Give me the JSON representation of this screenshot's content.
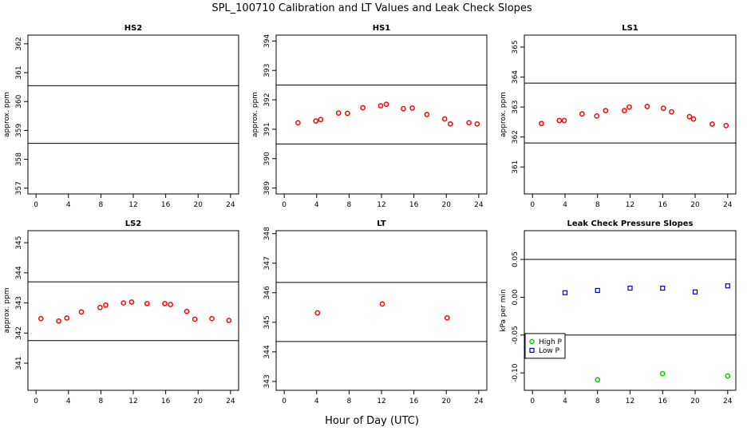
{
  "figure": {
    "title": "SPL_100710  Calibration and LT Values and Leak Check Slopes",
    "xlabel": "Hour of Day (UTC)"
  },
  "chart_data": [
    {
      "id": "hs2",
      "type": "scatter",
      "title": "HS2",
      "ylabel": "approx. ppm",
      "xlim": [
        -1,
        25
      ],
      "ylim": [
        356.8,
        362.3
      ],
      "xticks": [
        0,
        4,
        8,
        12,
        16,
        20,
        24
      ],
      "xtick_labels": [
        "0",
        "4",
        "8",
        "12",
        "16",
        "20",
        "24"
      ],
      "yticks": [
        357,
        358,
        359,
        360,
        361,
        362
      ],
      "ytick_labels": [
        "357",
        "358",
        "359",
        "360",
        "361",
        "362"
      ],
      "hlines": [
        360.55,
        358.55
      ],
      "series": [
        {
          "color": "#ff0000",
          "x": [],
          "y": []
        }
      ]
    },
    {
      "id": "hs1",
      "type": "scatter",
      "title": "HS1",
      "ylabel": "approx. ppm",
      "xlim": [
        -1,
        25
      ],
      "ylim": [
        388.8,
        394.2
      ],
      "xticks": [
        0,
        4,
        8,
        12,
        16,
        20,
        24
      ],
      "xtick_labels": [
        "0",
        "4",
        "8",
        "12",
        "16",
        "20",
        "24"
      ],
      "yticks": [
        389,
        390,
        391,
        392,
        393,
        394
      ],
      "ytick_labels": [
        "389",
        "390",
        "391",
        "392",
        "393",
        "394"
      ],
      "hlines": [
        392.5,
        390.5
      ],
      "series": [
        {
          "color": "#ff0000",
          "x": [
            1.7,
            3.9,
            4.5,
            6.7,
            7.8,
            9.7,
            11.9,
            12.6,
            14.7,
            15.8,
            17.6,
            19.8,
            20.5,
            22.8,
            23.8
          ],
          "y": [
            391.22,
            391.28,
            391.33,
            391.55,
            391.54,
            391.73,
            391.8,
            391.85,
            391.7,
            391.72,
            391.5,
            391.35,
            391.18,
            391.22,
            391.18
          ]
        }
      ]
    },
    {
      "id": "ls1",
      "type": "scatter",
      "title": "LS1",
      "ylabel": "approx. ppm",
      "xlim": [
        -1,
        25
      ],
      "ylim": [
        360.1,
        365.4
      ],
      "xticks": [
        0,
        4,
        8,
        12,
        16,
        20,
        24
      ],
      "xtick_labels": [
        "0",
        "4",
        "8",
        "12",
        "16",
        "20",
        "24"
      ],
      "yticks": [
        361,
        362,
        363,
        364,
        365
      ],
      "ytick_labels": [
        "361",
        "362",
        "363",
        "364",
        "365"
      ],
      "hlines": [
        363.8,
        361.8
      ],
      "series": [
        {
          "color": "#ff0000",
          "x": [
            1.1,
            3.3,
            3.9,
            6.1,
            7.9,
            9.0,
            11.3,
            11.9,
            14.1,
            16.1,
            17.1,
            19.3,
            19.8,
            22.1,
            23.8
          ],
          "y": [
            362.45,
            362.55,
            362.55,
            362.77,
            362.7,
            362.88,
            362.88,
            363.0,
            363.02,
            362.96,
            362.84,
            362.68,
            362.6,
            362.43,
            362.38
          ]
        }
      ]
    },
    {
      "id": "ls2",
      "type": "scatter",
      "title": "LS2",
      "ylabel": "approx. ppm",
      "xlim": [
        -1,
        25
      ],
      "ylim": [
        340.1,
        345.4
      ],
      "xticks": [
        0,
        4,
        8,
        12,
        16,
        20,
        24
      ],
      "xtick_labels": [
        "0",
        "4",
        "8",
        "12",
        "16",
        "20",
        "24"
      ],
      "yticks": [
        341,
        342,
        343,
        344,
        345
      ],
      "ytick_labels": [
        "341",
        "342",
        "343",
        "344",
        "345"
      ],
      "hlines": [
        343.7,
        341.75
      ],
      "series": [
        {
          "color": "#ff0000",
          "x": [
            0.6,
            2.8,
            3.8,
            5.6,
            7.9,
            8.6,
            10.8,
            11.8,
            13.7,
            15.9,
            16.6,
            18.6,
            19.6,
            21.7,
            23.8
          ],
          "y": [
            342.48,
            342.4,
            342.5,
            342.7,
            342.85,
            342.93,
            343.0,
            343.03,
            342.98,
            342.98,
            342.95,
            342.72,
            342.46,
            342.48,
            342.42
          ]
        }
      ]
    },
    {
      "id": "lt",
      "type": "scatter",
      "title": "LT",
      "ylabel": "",
      "xlim": [
        -1,
        25
      ],
      "ylim": [
        342.7,
        348.1
      ],
      "xticks": [
        0,
        4,
        8,
        12,
        16,
        20,
        24
      ],
      "xtick_labels": [
        "0",
        "4",
        "8",
        "12",
        "16",
        "20",
        "24"
      ],
      "yticks": [
        343,
        344,
        345,
        346,
        347,
        348
      ],
      "ytick_labels": [
        "343",
        "344",
        "345",
        "346",
        "347",
        "348"
      ],
      "hlines": [
        346.35,
        344.35
      ],
      "series": [
        {
          "color": "#ff0000",
          "x": [
            4.1,
            12.1,
            20.1
          ],
          "y": [
            345.32,
            345.62,
            345.15
          ]
        }
      ]
    },
    {
      "id": "leak",
      "type": "scatter",
      "title": "Leak Check Pressure Slopes",
      "ylabel": "kPa per min",
      "xlim": [
        -1,
        25
      ],
      "ylim": [
        -0.123,
        0.088
      ],
      "xticks": [
        0,
        4,
        8,
        12,
        16,
        20,
        24
      ],
      "xtick_labels": [
        "0",
        "4",
        "8",
        "12",
        "16",
        "20",
        "24"
      ],
      "yticks": [
        -0.1,
        -0.05,
        0,
        0.05
      ],
      "ytick_labels": [
        "-0.10",
        "-0.05",
        "0.00",
        "0.05"
      ],
      "hlines": [
        0.05,
        -0.05
      ],
      "legend": {
        "position": "bottom-left",
        "entries": [
          "High P",
          "Low P"
        ]
      },
      "series": [
        {
          "name": "High P",
          "color": "#00cc00",
          "marker": "circle",
          "x": [
            8,
            16,
            24
          ],
          "y": [
            -0.109,
            -0.101,
            -0.104
          ]
        },
        {
          "name": "Low P",
          "color": "#0000cc",
          "marker": "square",
          "x": [
            4,
            8,
            12,
            16,
            20,
            24
          ],
          "y": [
            0.006,
            0.009,
            0.012,
            0.012,
            0.007,
            0.015
          ]
        }
      ]
    }
  ]
}
